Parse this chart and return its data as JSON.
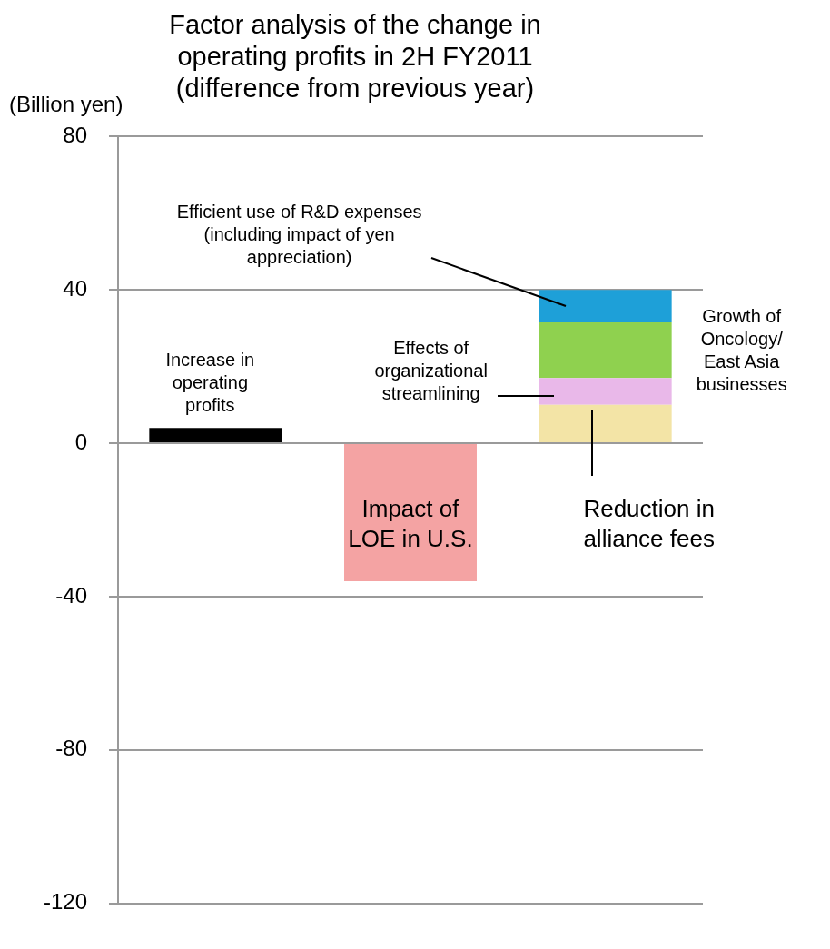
{
  "chart_data": {
    "type": "bar",
    "title": "Factor analysis of the change in operating profits in 2H FY2011",
    "subtitle": "(difference from previous year)",
    "ylabel": "(Billion yen)",
    "categories": [
      null,
      null,
      null
    ],
    "stacked": true,
    "series": [
      {
        "name": "Increase in operating profits",
        "color": "#000000",
        "values": [
          4,
          null,
          null
        ]
      },
      {
        "name": "Impact of LOE in U.S.",
        "color": "#f4a3a3",
        "values": [
          null,
          -36,
          null
        ]
      },
      {
        "name": "Reduction in alliance fees",
        "color": "#f3e4a6",
        "values": [
          null,
          null,
          10
        ]
      },
      {
        "name": "Effects of organizational streamlining",
        "color": "#e9b8e9",
        "values": [
          null,
          null,
          7
        ]
      },
      {
        "name": "Growth of Oncology/ East Asia businesses",
        "color": "#8fd14f",
        "values": [
          null,
          null,
          14.5
        ]
      },
      {
        "name": "Efficient use of R&D expenses (including impact of yen appreciation)",
        "color": "#1ea0d8",
        "values": [
          null,
          null,
          8.5
        ]
      }
    ],
    "ylim": [
      -120,
      80
    ],
    "yticks": [
      -120,
      -80,
      -40,
      0,
      40,
      80
    ],
    "grid": "y",
    "legend": false,
    "tick_labels": "y"
  }
}
